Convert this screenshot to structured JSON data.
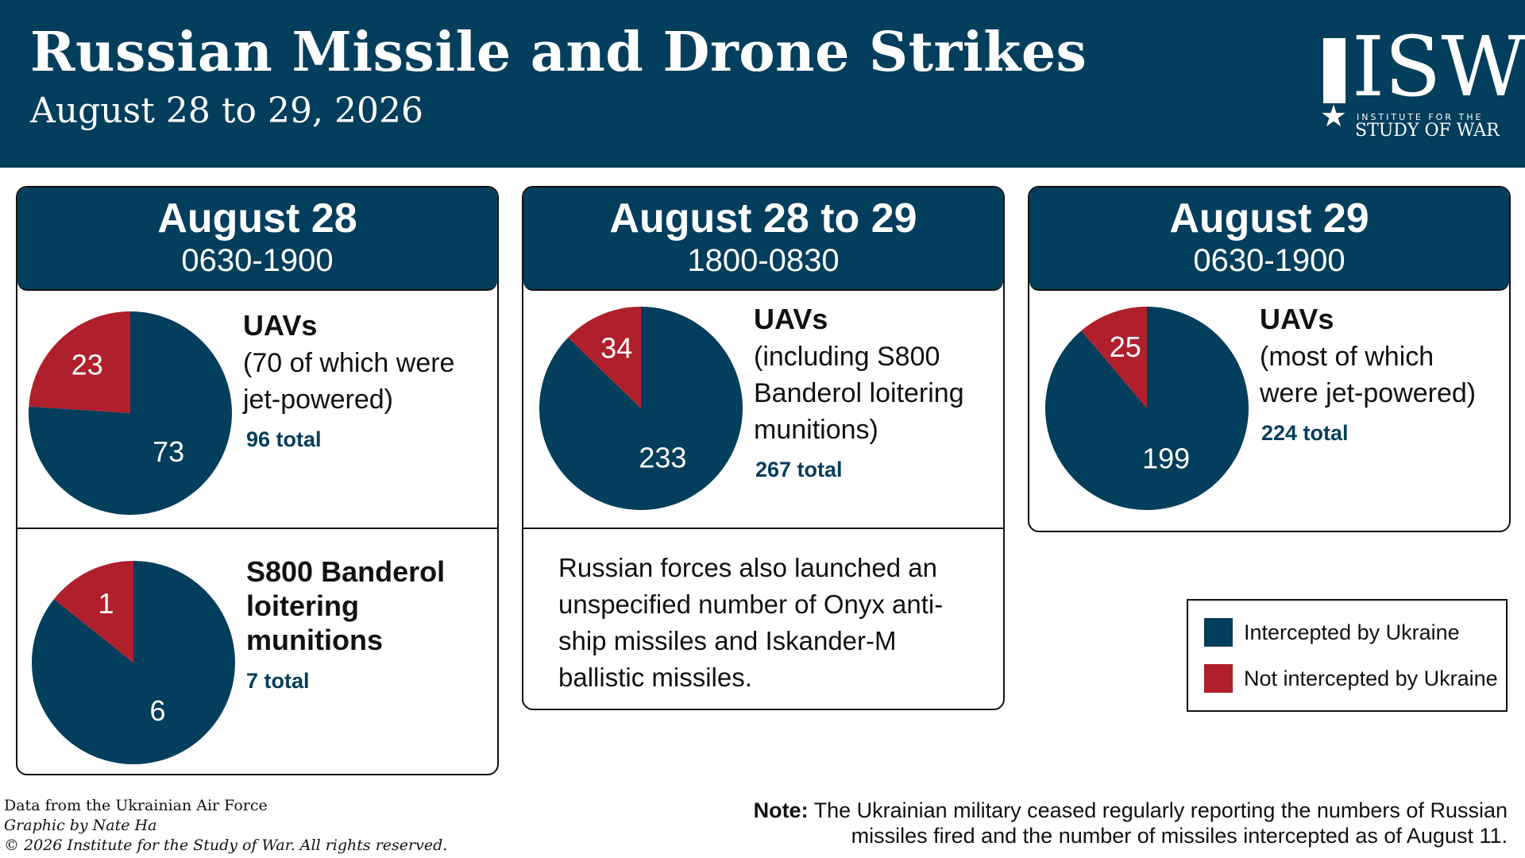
{
  "header": {
    "title": "Russian Missile and Drone Strikes",
    "subtitle": "August 28 to 29, 2026"
  },
  "logo": {
    "text": "ISW",
    "line1": "INSTITUTE FOR THE",
    "line2": "STUDY OF WAR"
  },
  "colors": {
    "navy": "#033e5c",
    "red": "#b01f2c"
  },
  "panels": [
    {
      "date": "August 28",
      "time": "0630-1900",
      "uav": {
        "title": "UAVs",
        "desc1": "(70 of which were",
        "desc2": "jet-powered)",
        "total": "96 total"
      },
      "s800": {
        "title1": "S800 Banderol",
        "title2": "loitering",
        "title3": "munitions",
        "total": "7 total"
      }
    },
    {
      "date": "August 28 to 29",
      "time": "1800-0830",
      "uav": {
        "title": "UAVs",
        "desc1": "(including S800",
        "desc2": "Banderol loitering",
        "desc3": "munitions)",
        "total": "267 total"
      },
      "note": [
        "Russian forces also launched an",
        "unspecified number of Onyx anti-",
        "ship missiles and Iskander-M",
        "ballistic missiles."
      ]
    },
    {
      "date": "August 29",
      "time": "0630-1900",
      "uav": {
        "title": "UAVs",
        "desc1": "(most of which",
        "desc2": "were jet-powered)",
        "total": "224 total"
      }
    }
  ],
  "legend": {
    "intercepted": "Intercepted by Ukraine",
    "not_intercepted": "Not intercepted by Ukraine"
  },
  "footer": {
    "source": "Data from the Ukrainian Air Force",
    "credit": "Graphic by Nate Ha",
    "copyright": "© 2026 Institute for the Study of War. All rights reserved.",
    "note_label": "Note:",
    "note_line1": "The Ukrainian military ceased regularly reporting the numbers of Russian",
    "note_line2": "missiles fired and the number of missiles intercepted as of August 11."
  },
  "chart_data": [
    {
      "type": "pie",
      "id": "aug28-uav",
      "categories": [
        "Intercepted by Ukraine",
        "Not intercepted by Ukraine"
      ],
      "values": [
        73,
        23
      ]
    },
    {
      "type": "pie",
      "id": "aug28-s800",
      "categories": [
        "Intercepted by Ukraine",
        "Not intercepted by Ukraine"
      ],
      "values": [
        6,
        1
      ]
    },
    {
      "type": "pie",
      "id": "aug28to29-uav",
      "categories": [
        "Intercepted by Ukraine",
        "Not intercepted by Ukraine"
      ],
      "values": [
        233,
        34
      ]
    },
    {
      "type": "pie",
      "id": "aug29-uav",
      "categories": [
        "Intercepted by Ukraine",
        "Not intercepted by Ukraine"
      ],
      "values": [
        199,
        25
      ]
    }
  ]
}
